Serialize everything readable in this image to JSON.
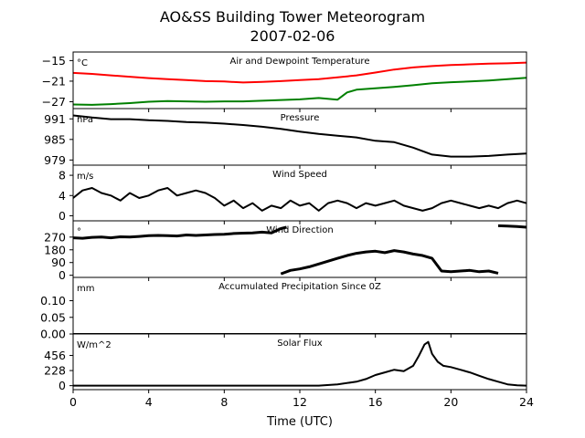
{
  "title": "AO&SS Building Tower Meteorogram",
  "subtitle": "2007-02-06",
  "chart_data": {
    "type": "line",
    "xlabel": "Time (UTC)",
    "xlim": [
      0,
      24
    ],
    "xticks": [
      "0",
      "4",
      "8",
      "12",
      "16",
      "20",
      "24"
    ],
    "colors": {
      "temperature": "#ff0000",
      "dewpoint": "#008000",
      "default": "#000000"
    },
    "panels": [
      {
        "title": "Air and Dewpoint Temperature",
        "unit": "°C",
        "ylim": [
          -29,
          -12.5
        ],
        "yticks": [
          -15,
          -21,
          -27
        ],
        "ytick_labels": [
          "−15",
          "−21",
          "−27"
        ],
        "series": [
          {
            "key": "temperature",
            "x": [
              0,
              1,
              2,
              3,
              4,
              5,
              6,
              7,
              8,
              9,
              10,
              11,
              12,
              13,
              14,
              15,
              16,
              17,
              18,
              19,
              20,
              21,
              22,
              23,
              24
            ],
            "y": [
              -18.6,
              -18.9,
              -19.3,
              -19.7,
              -20.1,
              -20.4,
              -20.7,
              -21.0,
              -21.1,
              -21.4,
              -21.2,
              -21.0,
              -20.7,
              -20.4,
              -19.9,
              -19.3,
              -18.5,
              -17.6,
              -17.0,
              -16.6,
              -16.3,
              -16.1,
              -15.9,
              -15.8,
              -15.6
            ]
          },
          {
            "key": "dewpoint",
            "x": [
              0,
              1,
              2,
              3,
              4,
              5,
              6,
              7,
              8,
              9,
              10,
              11,
              12,
              13,
              14,
              14.5,
              15,
              16,
              17,
              18,
              19,
              20,
              21,
              22,
              23,
              24
            ],
            "y": [
              -27.8,
              -27.9,
              -27.7,
              -27.4,
              -27.0,
              -26.8,
              -26.9,
              -27.0,
              -26.9,
              -26.9,
              -26.7,
              -26.5,
              -26.3,
              -25.9,
              -26.4,
              -24.3,
              -23.5,
              -23.1,
              -22.7,
              -22.2,
              -21.6,
              -21.3,
              -21.1,
              -20.8,
              -20.4,
              -20.0
            ]
          }
        ]
      },
      {
        "title": "Pressure",
        "unit": "hPa",
        "ylim": [
          977.5,
          994
        ],
        "yticks": [
          991,
          985,
          979
        ],
        "ytick_labels": [
          "991",
          "985",
          "979"
        ],
        "series": [
          {
            "key": "default",
            "x": [
              0,
              1,
              2,
              3,
              4,
              5,
              6,
              7,
              8,
              9,
              10,
              11,
              12,
              13,
              14,
              15,
              16,
              17,
              18,
              19,
              20,
              21,
              22,
              23,
              24
            ],
            "y": [
              992.0,
              991.4,
              990.9,
              990.9,
              990.6,
              990.4,
              990.1,
              989.9,
              989.6,
              989.2,
              988.7,
              988.1,
              987.3,
              986.6,
              986.1,
              985.6,
              984.6,
              984.2,
              982.6,
              980.6,
              980.0,
              980.0,
              980.2,
              980.6,
              980.9
            ]
          }
        ]
      },
      {
        "title": "Wind Speed",
        "unit": "m/s",
        "ylim": [
          -1,
          10
        ],
        "yticks": [
          8,
          4,
          0
        ],
        "ytick_labels": [
          "8",
          "4",
          "0"
        ],
        "series": [
          {
            "key": "default",
            "x": [
              0,
              0.5,
              1,
              1.5,
              2,
              2.5,
              3,
              3.5,
              4,
              4.5,
              5,
              5.5,
              6,
              6.5,
              7,
              7.5,
              8,
              8.5,
              9,
              9.5,
              10,
              10.5,
              11,
              11.5,
              12,
              12.5,
              13,
              13.5,
              14,
              14.5,
              15,
              15.5,
              16,
              16.5,
              17,
              17.5,
              18,
              18.5,
              19,
              19.5,
              20,
              20.5,
              21,
              21.5,
              22,
              22.5,
              23,
              23.5,
              24
            ],
            "y": [
              3.5,
              5.0,
              5.5,
              4.5,
              4.0,
              3.0,
              4.5,
              3.5,
              4.0,
              5.0,
              5.5,
              4.0,
              4.5,
              5.0,
              4.5,
              3.5,
              2.0,
              3.0,
              1.5,
              2.5,
              1.0,
              2.0,
              1.5,
              3.0,
              2.0,
              2.5,
              1.0,
              2.5,
              3.0,
              2.5,
              1.5,
              2.5,
              2.0,
              2.5,
              3.0,
              2.0,
              1.5,
              1.0,
              1.5,
              2.5,
              3.0,
              2.5,
              2.0,
              1.5,
              2.0,
              1.5,
              2.5,
              3.0,
              2.5
            ]
          }
        ]
      },
      {
        "title": "Wind Direction",
        "unit": "°",
        "ylim": [
          -15,
          385
        ],
        "yticks": [
          270,
          180,
          90,
          0
        ],
        "ytick_labels": [
          "270",
          "180",
          "90",
          "0"
        ],
        "series": [
          {
            "key": "default",
            "x": [
              0,
              0.5,
              1,
              1.5,
              2,
              2.5,
              3,
              3.5,
              4,
              4.5,
              5,
              5.5,
              6,
              6.5,
              7,
              7.5,
              8,
              8.5,
              9,
              9.5,
              10,
              10.5,
              11,
              11.3
            ],
            "y": [
              265,
              262,
              268,
              270,
              265,
              272,
              270,
              275,
              280,
              282,
              280,
              278,
              285,
              282,
              285,
              288,
              290,
              295,
              298,
              300,
              305,
              300,
              330,
              340
            ]
          },
          {
            "key": "default",
            "x": [
              11,
              11.5,
              12,
              12.5,
              13,
              13.5,
              14,
              14.5,
              15,
              15.5,
              16,
              16.5,
              17,
              17.5,
              18,
              18.5,
              19,
              19.5,
              20,
              20.5,
              21,
              21.5,
              22,
              22.5
            ],
            "y": [
              10,
              35,
              45,
              60,
              80,
              100,
              120,
              140,
              155,
              165,
              170,
              160,
              175,
              165,
              150,
              140,
              120,
              30,
              25,
              30,
              35,
              25,
              30,
              15
            ]
          },
          {
            "key": "default",
            "x": [
              22.5,
              23,
              23.5,
              24
            ],
            "y": [
              350,
              348,
              345,
              340
            ]
          }
        ]
      },
      {
        "title": "Accumulated Precipitation Since 0Z",
        "unit": "mm",
        "ylim": [
          0,
          0.17
        ],
        "yticks": [
          0.1,
          0.05,
          0.0
        ],
        "ytick_labels": [
          "0.10",
          "0.05",
          "0.00"
        ],
        "series": [
          {
            "key": "default",
            "x": [
              0,
              24
            ],
            "y": [
              0,
              0
            ]
          }
        ]
      },
      {
        "title": "Solar Flux",
        "unit": "W/m^2",
        "ylim": [
          -60,
          780
        ],
        "yticks": [
          456,
          228,
          0
        ],
        "ytick_labels": [
          "456",
          "228",
          "0"
        ],
        "series": [
          {
            "key": "default",
            "x": [
              0,
              13,
              14,
              15,
              15.5,
              16,
              16.5,
              17,
              17.5,
              18,
              18.3,
              18.6,
              18.8,
              19,
              19.3,
              19.6,
              20,
              20.5,
              21,
              21.5,
              22,
              22.5,
              23,
              23.5,
              24
            ],
            "y": [
              0,
              0,
              20,
              60,
              100,
              160,
              200,
              240,
              220,
              300,
              450,
              620,
              660,
              480,
              360,
              300,
              280,
              240,
              200,
              150,
              100,
              60,
              20,
              5,
              0
            ]
          }
        ]
      }
    ]
  }
}
